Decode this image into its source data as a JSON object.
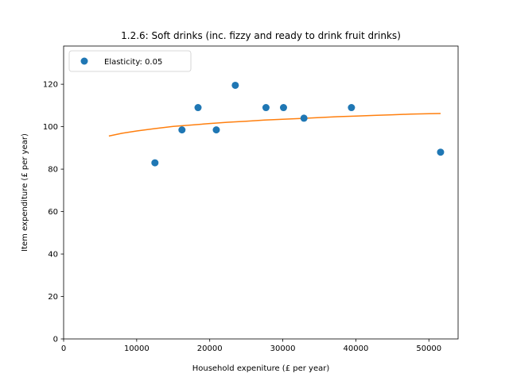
{
  "chart_data": {
    "type": "scatter",
    "title": "1.2.6: Soft drinks (inc. fizzy and ready to drink fruit drinks)",
    "xlabel": "Household expeniture (£ per year)",
    "ylabel": "Item expenditure (£ per year)",
    "xlim": [
      0,
      54000
    ],
    "ylim": [
      0,
      138
    ],
    "xticks": [
      0,
      10000,
      20000,
      30000,
      40000,
      50000
    ],
    "yticks": [
      0,
      20,
      40,
      60,
      80,
      100,
      120
    ],
    "grid": false,
    "legend_position": "top-left",
    "series": [
      {
        "name": "Elasticity: 0.05",
        "kind": "points",
        "color": "#1f77b4",
        "x": [
          12500,
          16200,
          18400,
          20900,
          23500,
          27700,
          30100,
          32900,
          39400,
          51600
        ],
        "y": [
          83,
          98.5,
          109,
          98.5,
          119.5,
          109,
          109,
          104,
          109,
          88
        ]
      },
      {
        "kind": "line",
        "color": "#ff7f0e",
        "x": [
          6200,
          8000,
          10000,
          12500,
          15000,
          17500,
          20000,
          22500,
          25000,
          27500,
          30000,
          32500,
          35000,
          37500,
          40000,
          42500,
          45000,
          47500,
          50000,
          51600
        ],
        "y": [
          95.6,
          96.9,
          98.0,
          99.1,
          100.1,
          100.8,
          101.5,
          102.1,
          102.6,
          103.1,
          103.5,
          103.9,
          104.3,
          104.7,
          105.0,
          105.3,
          105.6,
          105.9,
          106.1,
          106.2
        ]
      }
    ]
  }
}
